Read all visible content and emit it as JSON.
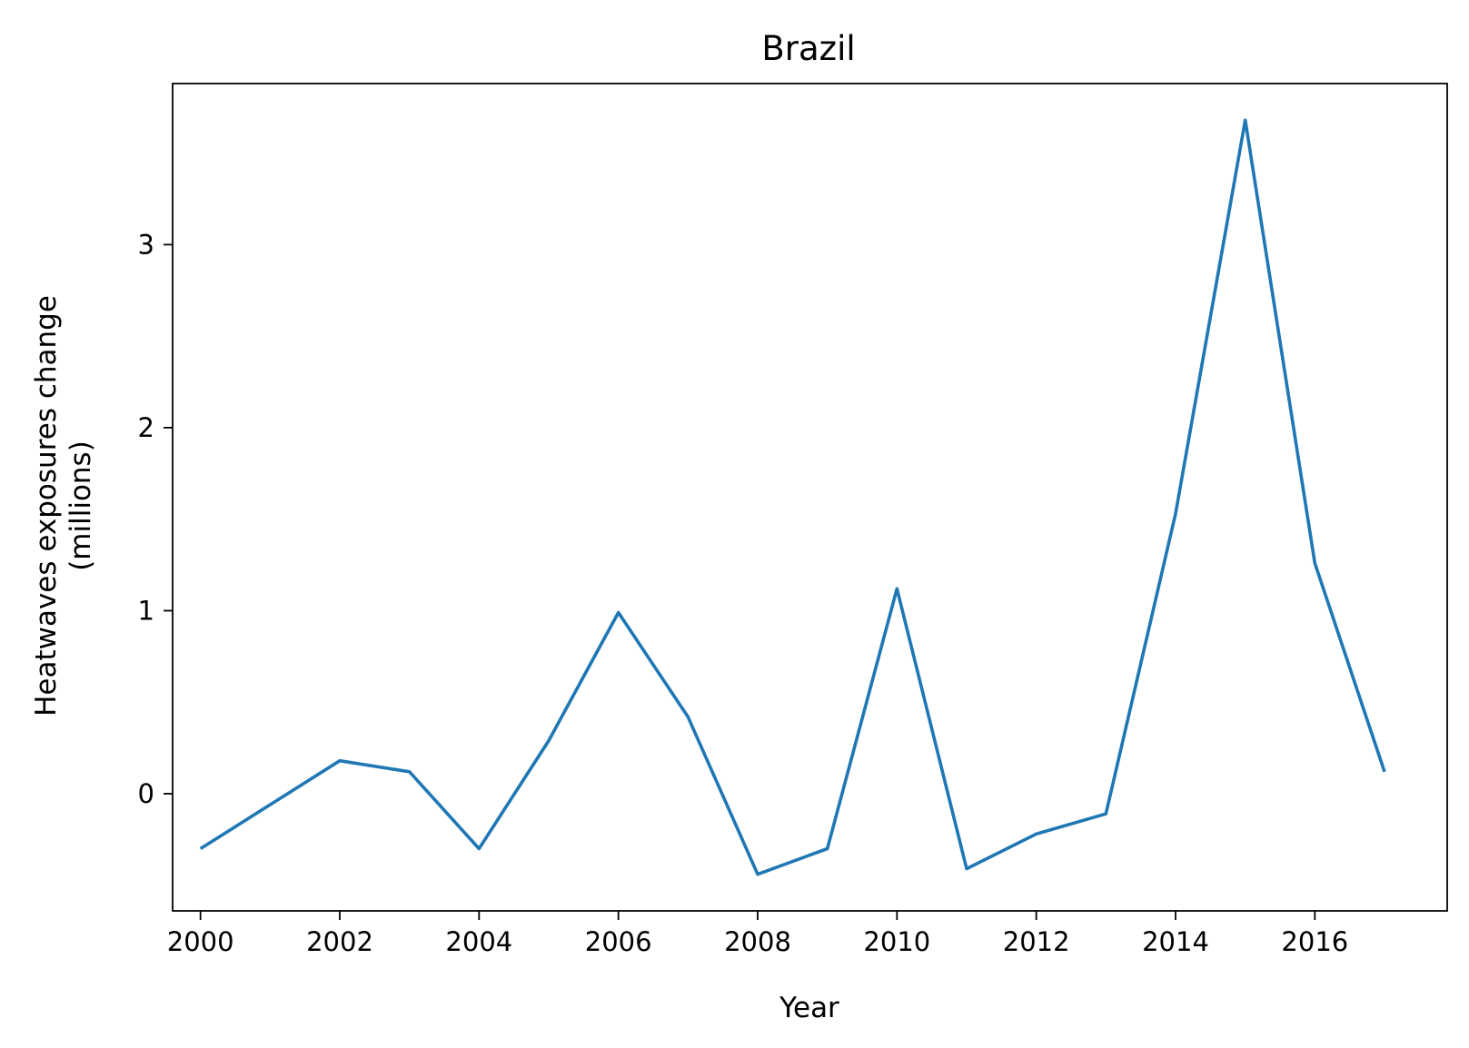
{
  "chart_data": {
    "type": "line",
    "title": "Brazil",
    "xlabel": "Year",
    "ylabel_lines": [
      "Heatwaves exposures change",
      "(millions)"
    ],
    "xlim": [
      1999.6,
      2017.9
    ],
    "ylim": [
      -0.64,
      3.88
    ],
    "x_ticks": [
      2000,
      2002,
      2004,
      2006,
      2008,
      2010,
      2012,
      2014,
      2016
    ],
    "y_ticks": [
      0,
      1,
      2,
      3
    ],
    "grid": false,
    "legend": "none",
    "series": [
      {
        "color": "#1f77b4",
        "x": [
          2000,
          2001,
          2002,
          2003,
          2004,
          2005,
          2006,
          2007,
          2008,
          2009,
          2010,
          2011,
          2012,
          2013,
          2014,
          2015,
          2016,
          2017
        ],
        "y": [
          -0.3,
          -0.06,
          0.18,
          0.12,
          -0.3,
          0.29,
          0.99,
          0.42,
          -0.44,
          -0.3,
          1.12,
          -0.41,
          -0.22,
          -0.11,
          1.53,
          3.68,
          1.26,
          0.12
        ]
      }
    ]
  }
}
